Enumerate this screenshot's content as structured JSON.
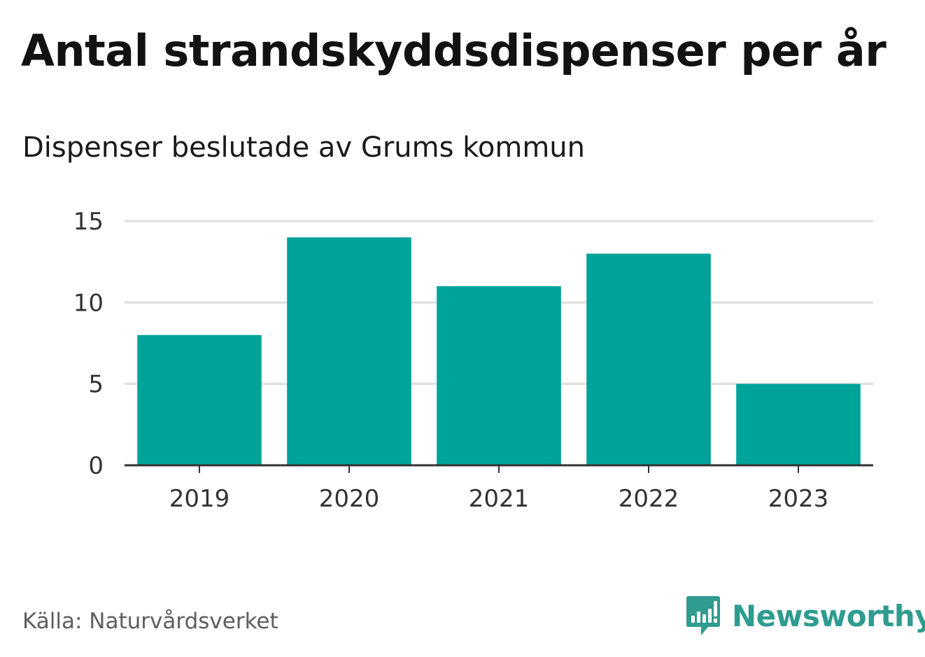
{
  "header": {
    "title": "Antal strandskyddsdispenser per år",
    "subtitle": "Dispenser beslutade av Grums kommun"
  },
  "footer": {
    "source": "Källa: Naturvårdsverket",
    "brand": "Newsworthy",
    "logo_icon": "newsworthy-logo-icon"
  },
  "colors": {
    "bar": "#00a39a",
    "grid": "#dddddd",
    "axis": "#333333",
    "brand": "#2e9c8f"
  },
  "chart_data": {
    "type": "bar",
    "title": "Antal strandskyddsdispenser per år",
    "subtitle": "Dispenser beslutade av Grums kommun",
    "categories": [
      "2019",
      "2020",
      "2021",
      "2022",
      "2023"
    ],
    "values": [
      8,
      14,
      11,
      13,
      5
    ],
    "xlabel": "",
    "ylabel": "",
    "ylim": [
      0,
      15
    ],
    "yticks": [
      0,
      5,
      10,
      15
    ],
    "grid": true
  }
}
